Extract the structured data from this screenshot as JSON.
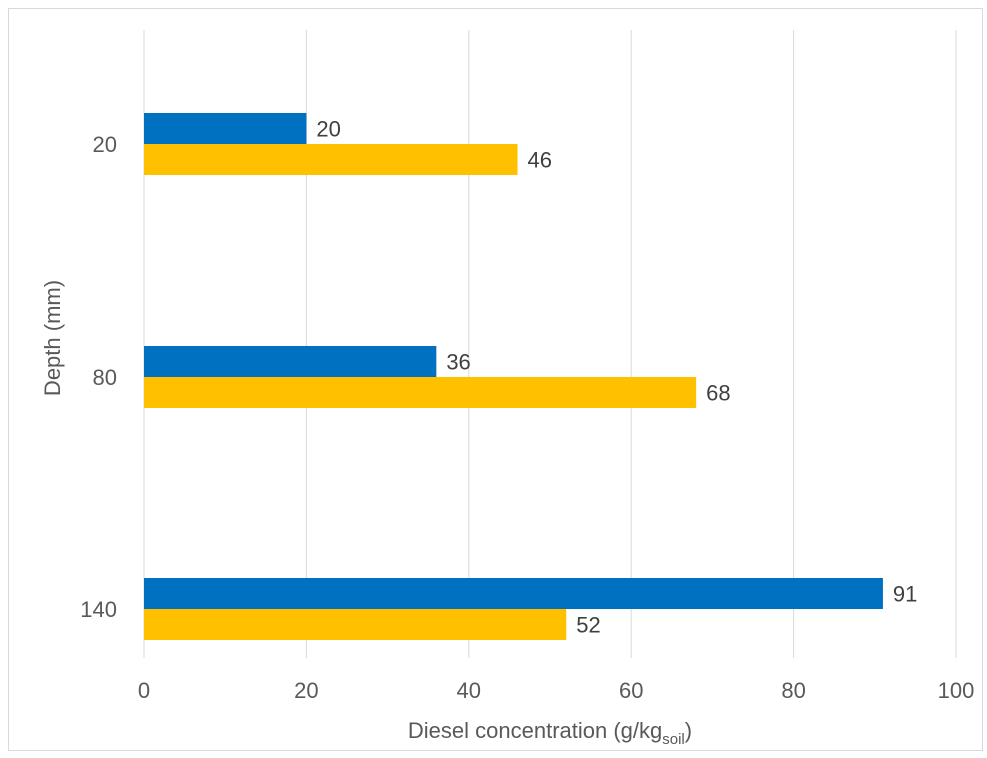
{
  "chart_data": {
    "type": "bar",
    "orientation": "horizontal",
    "categories": [
      "20",
      "80",
      "140"
    ],
    "series": [
      {
        "values": [
          20,
          36,
          91
        ],
        "color": "#0070c0"
      },
      {
        "values": [
          46,
          68,
          52
        ],
        "color": "#ffc000"
      }
    ],
    "xlabel": {
      "main": "Diesel concentration (g/kg",
      "subscript": "soil",
      "end": ")"
    },
    "ylabel": "Depth (mm)",
    "xlim": [
      0,
      100
    ],
    "xticks": [
      "0",
      "20",
      "40",
      "60",
      "80",
      "100"
    ],
    "grid": "vertical",
    "legend": "none",
    "data_labels": true
  }
}
